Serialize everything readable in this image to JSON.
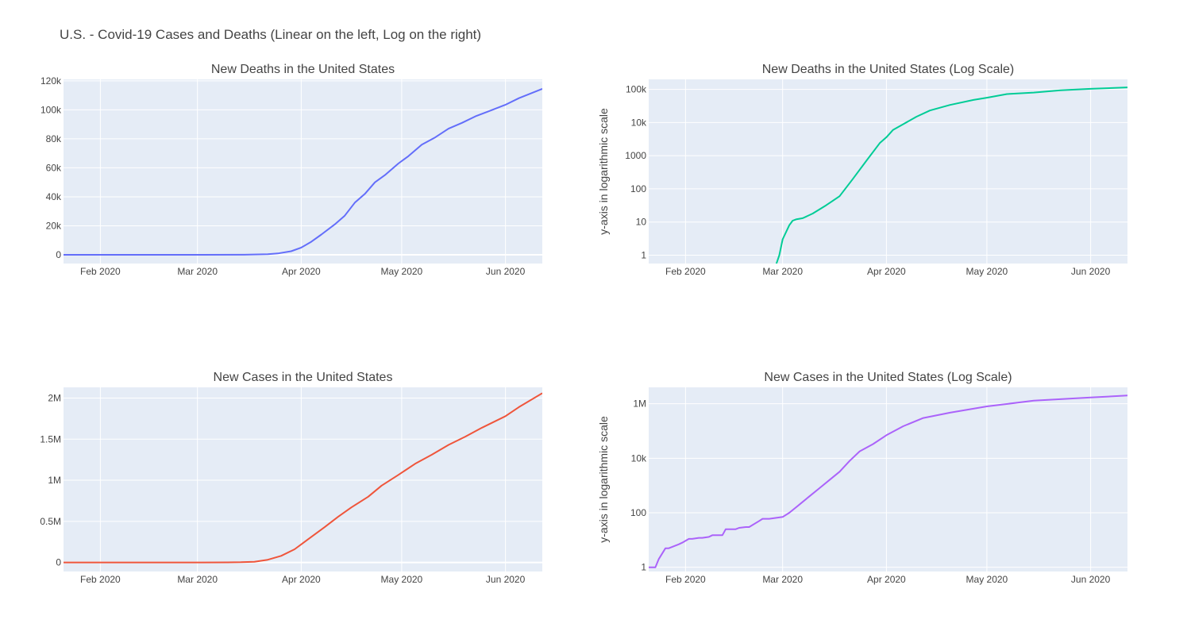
{
  "title": "U.S. - Covid-19 Cases and Deaths (Linear on the left, Log on the right)",
  "colors": {
    "plot_bg": "#e5ecf6",
    "grid": "#ffffff"
  },
  "chart_data": [
    {
      "id": "deaths-linear",
      "type": "line",
      "title": "New Deaths in the United States",
      "ylabel": "",
      "yscale": "linear",
      "ylim": [
        -6000,
        121000
      ],
      "xlim": [
        "2020-01-21",
        "2020-06-12"
      ],
      "xticks": [
        [
          "2020-02-01",
          "Feb 2020"
        ],
        [
          "2020-03-01",
          "Mar 2020"
        ],
        [
          "2020-04-01",
          "Apr 2020"
        ],
        [
          "2020-05-01",
          "May 2020"
        ],
        [
          "2020-06-01",
          "Jun 2020"
        ]
      ],
      "yticks": [
        [
          0,
          "0"
        ],
        [
          20000,
          "20k"
        ],
        [
          40000,
          "40k"
        ],
        [
          60000,
          "60k"
        ],
        [
          80000,
          "80k"
        ],
        [
          100000,
          "100k"
        ],
        [
          120000,
          "120k"
        ]
      ],
      "color": "#636efa",
      "series": [
        {
          "x": [
            "2020-01-21",
            "2020-02-29",
            "2020-03-15",
            "2020-03-22",
            "2020-03-25",
            "2020-03-29",
            "2020-04-01",
            "2020-04-04",
            "2020-04-07",
            "2020-04-11",
            "2020-04-14",
            "2020-04-17",
            "2020-04-20",
            "2020-04-23",
            "2020-04-26",
            "2020-04-30",
            "2020-05-03",
            "2020-05-07",
            "2020-05-11",
            "2020-05-15",
            "2020-05-19",
            "2020-05-23",
            "2020-05-27",
            "2020-06-01",
            "2020-06-05",
            "2020-06-12"
          ],
          "y": [
            0,
            1,
            70,
            420,
            950,
            2500,
            5000,
            9000,
            14000,
            21000,
            27000,
            36000,
            42000,
            50000,
            55000,
            63000,
            68000,
            76000,
            81000,
            87000,
            91000,
            95500,
            99000,
            103500,
            108000,
            114500
          ]
        }
      ]
    },
    {
      "id": "deaths-log",
      "type": "line",
      "title": "New Deaths in the United States (Log Scale)",
      "ylabel": "y-axis in logarithmic scale",
      "yscale": "log",
      "ylim": [
        0.56,
        200000
      ],
      "xlim": [
        "2020-01-21",
        "2020-06-12"
      ],
      "xticks": [
        [
          "2020-02-01",
          "Feb 2020"
        ],
        [
          "2020-03-01",
          "Mar 2020"
        ],
        [
          "2020-04-01",
          "Apr 2020"
        ],
        [
          "2020-05-01",
          "May 2020"
        ],
        [
          "2020-06-01",
          "Jun 2020"
        ]
      ],
      "yticks": [
        [
          1,
          "1"
        ],
        [
          10,
          "10"
        ],
        [
          100,
          "100"
        ],
        [
          1000,
          "1000"
        ],
        [
          10000,
          "10k"
        ],
        [
          100000,
          "100k"
        ]
      ],
      "color": "#00cc96",
      "series": [
        {
          "x": [
            "2020-02-28",
            "2020-02-29",
            "2020-03-01",
            "2020-03-03",
            "2020-03-04",
            "2020-03-05",
            "2020-03-07",
            "2020-03-10",
            "2020-03-14",
            "2020-03-18",
            "2020-03-22",
            "2020-03-26",
            "2020-03-30",
            "2020-04-01",
            "2020-04-03",
            "2020-04-06",
            "2020-04-10",
            "2020-04-14",
            "2020-04-20",
            "2020-04-27",
            "2020-05-01",
            "2020-05-07",
            "2020-05-15",
            "2020-05-23",
            "2020-06-01",
            "2020-06-12"
          ],
          "y": [
            0.5,
            1,
            3,
            8,
            11,
            12,
            13,
            18,
            32,
            60,
            200,
            700,
            2400,
            3600,
            6000,
            8900,
            15000,
            23000,
            34000,
            48000,
            56000,
            72000,
            80000,
            94000,
            104000,
            114500
          ]
        }
      ]
    },
    {
      "id": "cases-linear",
      "type": "line",
      "title": "New Cases in the United States",
      "ylabel": "",
      "yscale": "linear",
      "ylim": [
        -110000,
        2130000
      ],
      "xlim": [
        "2020-01-21",
        "2020-06-12"
      ],
      "xticks": [
        [
          "2020-02-01",
          "Feb 2020"
        ],
        [
          "2020-03-01",
          "Mar 2020"
        ],
        [
          "2020-04-01",
          "Apr 2020"
        ],
        [
          "2020-05-01",
          "May 2020"
        ],
        [
          "2020-06-01",
          "Jun 2020"
        ]
      ],
      "yticks": [
        [
          0,
          "0"
        ],
        [
          500000,
          "0.5M"
        ],
        [
          1000000,
          "1M"
        ],
        [
          1500000,
          "1.5M"
        ],
        [
          2000000,
          "2M"
        ]
      ],
      "color": "#ef553b",
      "series": [
        {
          "x": [
            "2020-01-21",
            "2020-03-01",
            "2020-03-10",
            "2020-03-14",
            "2020-03-18",
            "2020-03-22",
            "2020-03-26",
            "2020-03-30",
            "2020-04-03",
            "2020-04-08",
            "2020-04-12",
            "2020-04-16",
            "2020-04-21",
            "2020-04-25",
            "2020-04-30",
            "2020-05-05",
            "2020-05-10",
            "2020-05-15",
            "2020-05-20",
            "2020-05-25",
            "2020-06-01",
            "2020-06-05",
            "2020-06-12"
          ],
          "y": [
            1,
            80,
            1000,
            3000,
            9000,
            33000,
            80000,
            160000,
            280000,
            430000,
            555000,
            670000,
            800000,
            935000,
            1065000,
            1200000,
            1310000,
            1430000,
            1530000,
            1640000,
            1780000,
            1890000,
            2060000
          ]
        }
      ]
    },
    {
      "id": "cases-log",
      "type": "line",
      "title": "New Cases in the United States (Log Scale)",
      "ylabel": "y-axis in logarithmic scale",
      "yscale": "log",
      "ylim": [
        0.7,
        4000000
      ],
      "xlim": [
        "2020-01-21",
        "2020-06-12"
      ],
      "xticks": [
        [
          "2020-02-01",
          "Feb 2020"
        ],
        [
          "2020-03-01",
          "Mar 2020"
        ],
        [
          "2020-04-01",
          "Apr 2020"
        ],
        [
          "2020-05-01",
          "May 2020"
        ],
        [
          "2020-06-01",
          "Jun 2020"
        ]
      ],
      "yticks": [
        [
          1,
          "1"
        ],
        [
          100,
          "100"
        ],
        [
          10000,
          "10k"
        ],
        [
          1000000,
          "1M"
        ]
      ],
      "color": "#ab63fa",
      "series": [
        {
          "x": [
            "2020-01-21",
            "2020-01-23",
            "2020-01-24",
            "2020-01-26",
            "2020-01-27",
            "2020-01-30",
            "2020-01-31",
            "2020-02-02",
            "2020-02-03",
            "2020-02-05",
            "2020-02-06",
            "2020-02-08",
            "2020-02-09",
            "2020-02-12",
            "2020-02-13",
            "2020-02-16",
            "2020-02-17",
            "2020-02-19",
            "2020-02-20",
            "2020-02-23",
            "2020-02-24",
            "2020-02-26",
            "2020-03-01",
            "2020-03-03",
            "2020-03-06",
            "2020-03-09",
            "2020-03-12",
            "2020-03-15",
            "2020-03-18",
            "2020-03-21",
            "2020-03-24",
            "2020-03-28",
            "2020-04-01",
            "2020-04-06",
            "2020-04-12",
            "2020-04-20",
            "2020-05-01",
            "2020-05-15",
            "2020-06-01",
            "2020-06-12"
          ],
          "y": [
            1,
            1,
            2,
            5,
            5,
            7,
            8,
            11,
            11,
            12,
            12,
            13,
            15,
            15,
            25,
            25,
            28,
            30,
            30,
            50,
            60,
            60,
            70,
            100,
            200,
            400,
            800,
            1600,
            3200,
            8000,
            18000,
            33000,
            70000,
            150000,
            300000,
            470000,
            800000,
            1300000,
            1700000,
            2000000
          ]
        }
      ]
    }
  ]
}
